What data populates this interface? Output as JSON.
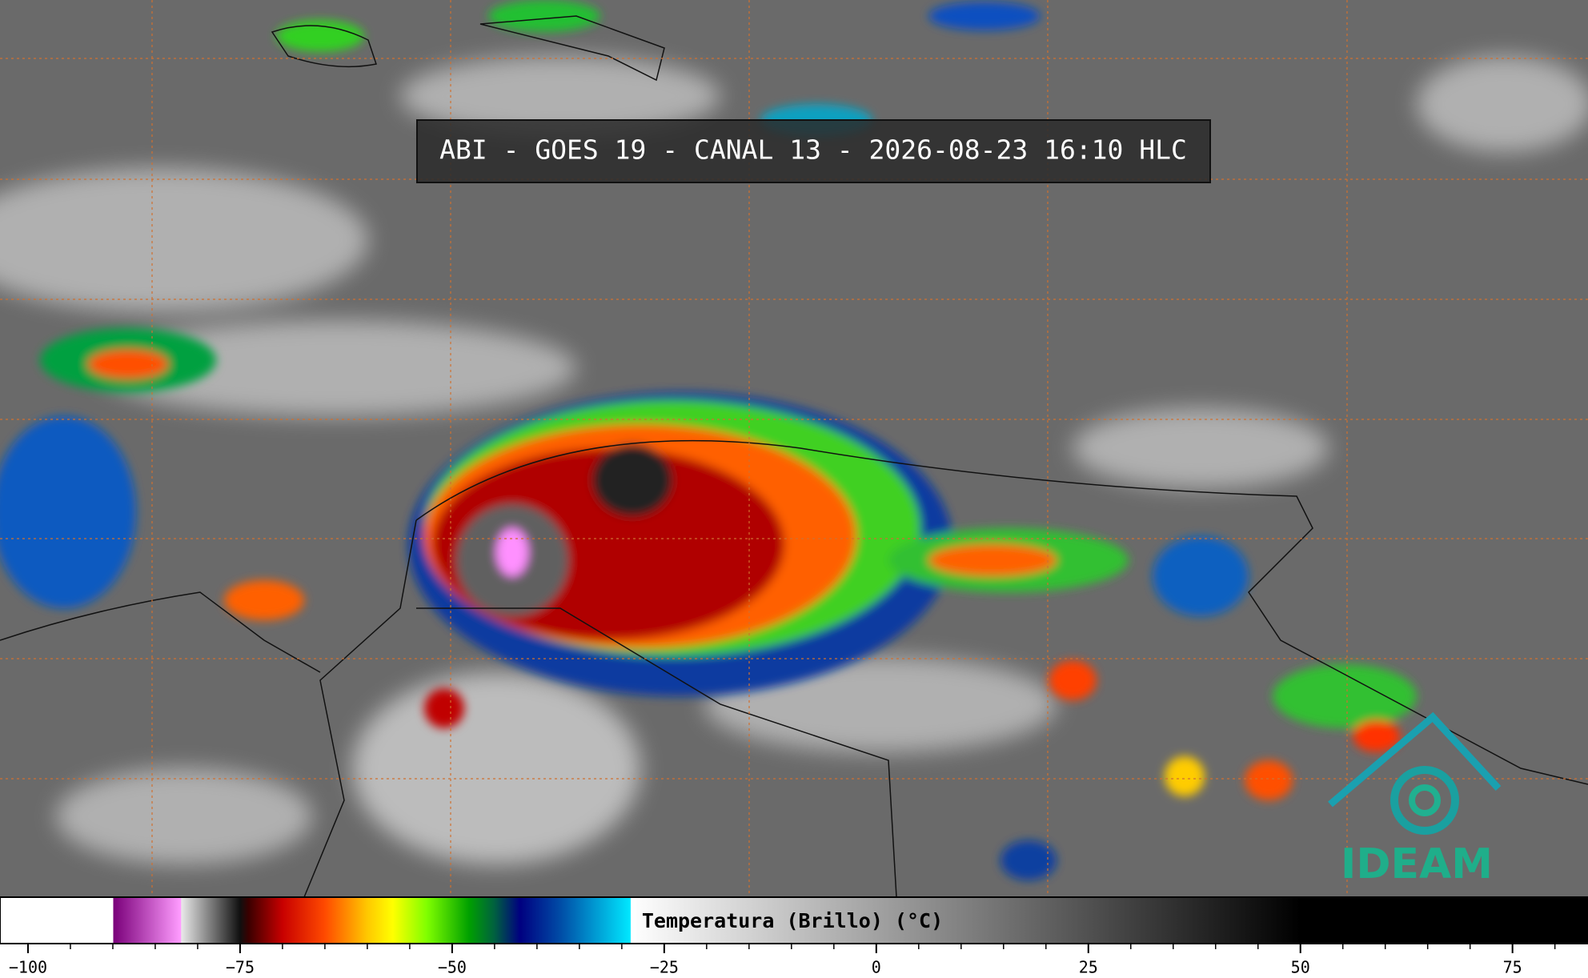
{
  "header": {
    "title": "ABI - GOES 19 - CANAL 13 - 2026-08-23 16:10 HLC"
  },
  "logo": {
    "text": "IDEAM"
  },
  "colorbar": {
    "label": "Temperatura (Brillo) (°C)",
    "range": [
      -103.3,
      83.9
    ],
    "ticks": [
      {
        "value": -100,
        "label": "−100"
      },
      {
        "value": -75,
        "label": "−75"
      },
      {
        "value": -50,
        "label": "−50"
      },
      {
        "value": -25,
        "label": "−25"
      },
      0,
      25,
      50,
      75
    ],
    "minor_tick_step": 5,
    "colormap": [
      {
        "value": -103.3,
        "color": "#ffffff"
      },
      {
        "value": -90,
        "color": "#ffffff"
      },
      {
        "value": -89.9,
        "color": "#7a007a"
      },
      {
        "value": -82,
        "color": "#ff9cff"
      },
      {
        "value": -81.9,
        "color": "#e8e8e8"
      },
      {
        "value": -75,
        "color": "#101010"
      },
      {
        "value": -74,
        "color": "#3a0000"
      },
      {
        "value": -70,
        "color": "#c80000"
      },
      {
        "value": -65,
        "color": "#ff4a00"
      },
      {
        "value": -60,
        "color": "#ffc800"
      },
      {
        "value": -57,
        "color": "#ffff00"
      },
      {
        "value": -53,
        "color": "#80ff00"
      },
      {
        "value": -48,
        "color": "#00a000"
      },
      {
        "value": -45,
        "color": "#006040"
      },
      {
        "value": -42,
        "color": "#000080"
      },
      {
        "value": -37,
        "color": "#0050a8"
      },
      {
        "value": -29,
        "color": "#00e8ff"
      },
      {
        "value": -28.9,
        "color": "#ffffff"
      },
      {
        "value": 50,
        "color": "#000000"
      },
      {
        "value": 83.9,
        "color": "#000000"
      }
    ]
  }
}
